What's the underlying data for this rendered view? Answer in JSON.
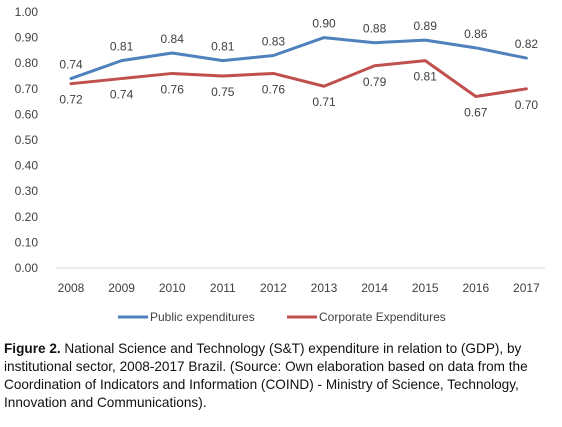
{
  "chart_data": {
    "type": "line",
    "categories": [
      "2008",
      "2009",
      "2010",
      "2011",
      "2012",
      "2013",
      "2014",
      "2015",
      "2016",
      "2017"
    ],
    "series": [
      {
        "name": "Public expenditures",
        "color": "#4F81BD",
        "values": [
          0.74,
          0.81,
          0.84,
          0.81,
          0.83,
          0.9,
          0.88,
          0.89,
          0.86,
          0.82
        ],
        "labels": [
          "0.74",
          "0.81",
          "0.84",
          "0.81",
          "0.83",
          "0.90",
          "0.88",
          "0.89",
          "0.86",
          "0.82"
        ]
      },
      {
        "name": "Corporate Expenditures",
        "color": "#C0504D",
        "values": [
          0.72,
          0.74,
          0.76,
          0.75,
          0.76,
          0.71,
          0.79,
          0.81,
          0.67,
          0.7
        ],
        "labels": [
          "0.72",
          "0.74",
          "0.76",
          "0.75",
          "0.76",
          "0.71",
          "0.79",
          "0.81",
          "0.67",
          "0.70"
        ]
      }
    ],
    "ylim": [
      0,
      1.0
    ],
    "yticks": [
      "0.00",
      "0.10",
      "0.20",
      "0.30",
      "0.40",
      "0.50",
      "0.60",
      "0.70",
      "0.80",
      "0.90",
      "1.00"
    ],
    "legend_position": "bottom",
    "grid": false
  },
  "caption": {
    "label": "Figure 2.",
    "text": " National Science and Technology (S&T) expenditure in relation to (GDP), by institutional sector, 2008-2017 Brazil. (Source: Own elaboration based on data from the Coordination of Indicators and Information (COIND) - Ministry of Science, Technology, Innovation and Communications)."
  }
}
